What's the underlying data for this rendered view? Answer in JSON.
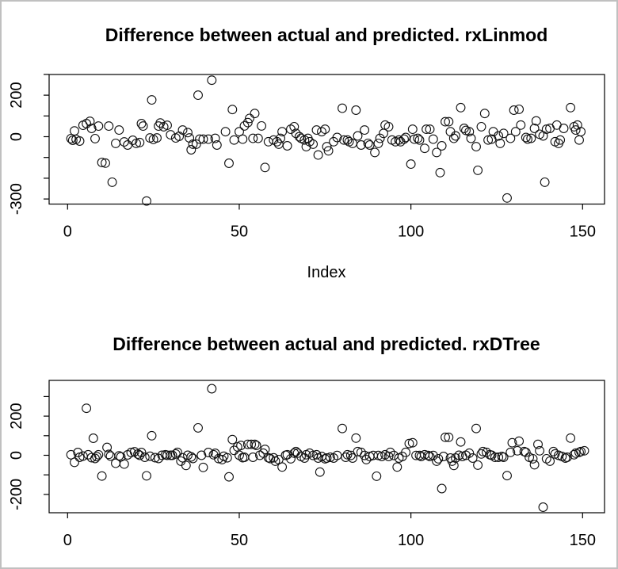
{
  "window": {
    "background": "#ffffff",
    "border_color": "#c0c0c0",
    "marker_color": "#000000"
  },
  "chart_data": [
    {
      "type": "scatter",
      "title": "Difference between actual and predicted. rxLinmod",
      "xlabel": "Index",
      "ylabel": "",
      "marker": "open-circle",
      "xlim": [
        -5,
        156
      ],
      "ylim": [
        -330,
        300
      ],
      "x_ticks": [
        {
          "v": 0,
          "label": "0"
        },
        {
          "v": 50,
          "label": "50"
        },
        {
          "v": 100,
          "label": "100"
        },
        {
          "v": 150,
          "label": "150"
        }
      ],
      "y_ticks": [
        {
          "v": 300,
          "label": ""
        },
        {
          "v": 200,
          "label": "200"
        },
        {
          "v": 100,
          "label": ""
        },
        {
          "v": 0,
          "label": "0"
        },
        {
          "v": -100,
          "label": ""
        },
        {
          "v": -200,
          "label": ""
        },
        {
          "v": -300,
          "label": "-300"
        }
      ],
      "points": [
        [
          1,
          -9
        ],
        [
          1.5,
          -17
        ],
        [
          2,
          28
        ],
        [
          2.5,
          -13
        ],
        [
          3.5,
          -21
        ],
        [
          4.5,
          55
        ],
        [
          5.5,
          63
        ],
        [
          6.5,
          74
        ],
        [
          7,
          40
        ],
        [
          8,
          -9
        ],
        [
          9,
          51
        ],
        [
          10,
          -124
        ],
        [
          11,
          -127
        ],
        [
          12,
          51
        ],
        [
          13,
          -219
        ],
        [
          14,
          -32
        ],
        [
          15,
          32
        ],
        [
          16.5,
          -25
        ],
        [
          17.5,
          -40
        ],
        [
          19,
          -17
        ],
        [
          20,
          -32
        ],
        [
          21,
          -28
        ],
        [
          21.5,
          63
        ],
        [
          22,
          51
        ],
        [
          23,
          -310
        ],
        [
          24,
          -6
        ],
        [
          24.5,
          177
        ],
        [
          25,
          -13
        ],
        [
          26,
          -6
        ],
        [
          26.5,
          51
        ],
        [
          27,
          66
        ],
        [
          28,
          48
        ],
        [
          29,
          55
        ],
        [
          30,
          9
        ],
        [
          31.5,
          -6
        ],
        [
          32.5,
          2
        ],
        [
          33.5,
          32
        ],
        [
          35,
          20
        ],
        [
          35.5,
          -6
        ],
        [
          36,
          -63
        ],
        [
          36.5,
          -36
        ],
        [
          37.5,
          -36
        ],
        [
          38,
          200
        ],
        [
          38.5,
          -12
        ],
        [
          39.5,
          -12
        ],
        [
          41,
          -12
        ],
        [
          42,
          272
        ],
        [
          43,
          -8
        ],
        [
          43.5,
          -40
        ],
        [
          46,
          24
        ],
        [
          47,
          -128
        ],
        [
          48,
          131
        ],
        [
          48.5,
          -16
        ],
        [
          50,
          24
        ],
        [
          51,
          -12
        ],
        [
          51.5,
          52
        ],
        [
          52.5,
          68
        ],
        [
          53,
          88
        ],
        [
          54,
          -8
        ],
        [
          54.5,
          112
        ],
        [
          55.5,
          -8
        ],
        [
          56.5,
          52
        ],
        [
          57.5,
          -148
        ],
        [
          58.5,
          -24
        ],
        [
          60,
          -16
        ],
        [
          61,
          -24
        ],
        [
          61.5,
          -36
        ],
        [
          62,
          -8
        ],
        [
          62.5,
          24
        ],
        [
          64,
          -44
        ],
        [
          65,
          36
        ],
        [
          66,
          48
        ],
        [
          66.5,
          16
        ],
        [
          67.5,
          0
        ],
        [
          68,
          -8
        ],
        [
          69,
          -16
        ],
        [
          69.5,
          -48
        ],
        [
          70,
          -8
        ],
        [
          70.5,
          -24
        ],
        [
          71.5,
          -36
        ],
        [
          72.5,
          32
        ],
        [
          73,
          -88
        ],
        [
          74,
          24
        ],
        [
          75,
          36
        ],
        [
          75.5,
          -48
        ],
        [
          76,
          -68
        ],
        [
          77.5,
          -24
        ],
        [
          78.5,
          -4
        ],
        [
          80,
          137
        ],
        [
          80.5,
          -16
        ],
        [
          81.5,
          -16
        ],
        [
          82,
          -24
        ],
        [
          83,
          -32
        ],
        [
          84,
          128
        ],
        [
          84.5,
          4
        ],
        [
          85.5,
          -40
        ],
        [
          86.5,
          32
        ],
        [
          87.5,
          -32
        ],
        [
          88,
          -40
        ],
        [
          89.5,
          -76
        ],
        [
          90.5,
          -32
        ],
        [
          91,
          -8
        ],
        [
          92,
          16
        ],
        [
          92.5,
          56
        ],
        [
          93.5,
          48
        ],
        [
          94.5,
          -16
        ],
        [
          95.5,
          -24
        ],
        [
          96.5,
          -16
        ],
        [
          97,
          -24
        ],
        [
          98,
          -12
        ],
        [
          98.5,
          -4
        ],
        [
          100,
          -132
        ],
        [
          100.5,
          36
        ],
        [
          101,
          -12
        ],
        [
          102,
          -8
        ],
        [
          102.5,
          -16
        ],
        [
          104,
          -56
        ],
        [
          104.5,
          36
        ],
        [
          105.5,
          36
        ],
        [
          106.5,
          -12
        ],
        [
          107.5,
          -76
        ],
        [
          108.5,
          -173
        ],
        [
          109,
          -44
        ],
        [
          110,
          72
        ],
        [
          111,
          72
        ],
        [
          111.5,
          24
        ],
        [
          112.5,
          -8
        ],
        [
          113,
          4
        ],
        [
          114.5,
          140
        ],
        [
          115.5,
          40
        ],
        [
          116,
          30
        ],
        [
          117,
          24
        ],
        [
          117.5,
          -8
        ],
        [
          119,
          -48
        ],
        [
          119.5,
          -162
        ],
        [
          120.5,
          48
        ],
        [
          121.5,
          112
        ],
        [
          122.5,
          -16
        ],
        [
          123.5,
          -12
        ],
        [
          124,
          24
        ],
        [
          125.5,
          4
        ],
        [
          126,
          -32
        ],
        [
          127,
          16
        ],
        [
          128,
          -295
        ],
        [
          129,
          -8
        ],
        [
          130,
          128
        ],
        [
          130.5,
          24
        ],
        [
          131.5,
          132
        ],
        [
          132,
          56
        ],
        [
          133.5,
          -4
        ],
        [
          134,
          -12
        ],
        [
          135,
          -8
        ],
        [
          136,
          40
        ],
        [
          136.5,
          76
        ],
        [
          137.5,
          12
        ],
        [
          138.5,
          4
        ],
        [
          139,
          -219
        ],
        [
          139.5,
          36
        ],
        [
          140.5,
          40
        ],
        [
          142,
          -24
        ],
        [
          142.5,
          56
        ],
        [
          143,
          -32
        ],
        [
          143.5,
          -16
        ],
        [
          144.5,
          40
        ],
        [
          146.5,
          140
        ],
        [
          147.5,
          48
        ],
        [
          148,
          32
        ],
        [
          148.5,
          56
        ],
        [
          149,
          -16
        ],
        [
          149.5,
          24
        ]
      ]
    },
    {
      "type": "scatter",
      "title": "Difference between actual and predicted. rxDTree",
      "xlabel": "",
      "ylabel": "",
      "marker": "open-circle",
      "xlim": [
        -5,
        156
      ],
      "ylim": [
        -295,
        380
      ],
      "x_ticks": [
        {
          "v": 0,
          "label": "0"
        },
        {
          "v": 50,
          "label": "50"
        },
        {
          "v": 100,
          "label": "100"
        },
        {
          "v": 150,
          "label": "150"
        }
      ],
      "y_ticks": [
        {
          "v": 300,
          "label": ""
        },
        {
          "v": 200,
          "label": "200"
        },
        {
          "v": 100,
          "label": ""
        },
        {
          "v": 0,
          "label": "0"
        },
        {
          "v": -100,
          "label": ""
        },
        {
          "v": -200,
          "label": "-200"
        }
      ],
      "points": [
        [
          1,
          3
        ],
        [
          2,
          -36
        ],
        [
          3,
          14
        ],
        [
          3.5,
          -10
        ],
        [
          4.5,
          -4
        ],
        [
          5.5,
          240
        ],
        [
          6,
          3
        ],
        [
          7,
          -12
        ],
        [
          7.5,
          87
        ],
        [
          8,
          -16
        ],
        [
          8.5,
          -7
        ],
        [
          9,
          3
        ],
        [
          10,
          -106
        ],
        [
          11.5,
          40
        ],
        [
          12,
          5
        ],
        [
          12.5,
          -4
        ],
        [
          14,
          -41
        ],
        [
          15,
          -3
        ],
        [
          15.5,
          -8
        ],
        [
          16.5,
          -45
        ],
        [
          17.5,
          2
        ],
        [
          18.5,
          14
        ],
        [
          19.5,
          18
        ],
        [
          20.5,
          6
        ],
        [
          21,
          0
        ],
        [
          21.5,
          14
        ],
        [
          22.5,
          -10
        ],
        [
          23,
          -105
        ],
        [
          24,
          -5
        ],
        [
          24.5,
          100
        ],
        [
          25.5,
          -12
        ],
        [
          26.5,
          -16
        ],
        [
          27.5,
          0
        ],
        [
          28.5,
          3
        ],
        [
          29,
          0
        ],
        [
          30,
          0
        ],
        [
          30.5,
          0
        ],
        [
          31.5,
          7
        ],
        [
          32,
          15
        ],
        [
          33,
          -30
        ],
        [
          33.5,
          -13
        ],
        [
          34.5,
          -52
        ],
        [
          35,
          0
        ],
        [
          36,
          -8
        ],
        [
          36.5,
          -16
        ],
        [
          38,
          140
        ],
        [
          39,
          0
        ],
        [
          39.5,
          -62
        ],
        [
          41,
          14
        ],
        [
          42,
          340
        ],
        [
          42.5,
          3
        ],
        [
          43,
          10
        ],
        [
          44,
          -17
        ],
        [
          45,
          -22
        ],
        [
          45.5,
          -5
        ],
        [
          46.5,
          -13
        ],
        [
          47,
          -110
        ],
        [
          48,
          80
        ],
        [
          48.5,
          25
        ],
        [
          49.5,
          43
        ],
        [
          50,
          0
        ],
        [
          50.5,
          50
        ],
        [
          51,
          -12
        ],
        [
          51.5,
          -10
        ],
        [
          52.5,
          56
        ],
        [
          53.5,
          56
        ],
        [
          54,
          -10
        ],
        [
          54.5,
          56
        ],
        [
          55,
          50
        ],
        [
          56,
          0
        ],
        [
          57,
          11
        ],
        [
          57.5,
          30
        ],
        [
          58.5,
          -13
        ],
        [
          59,
          -17
        ],
        [
          60,
          -13
        ],
        [
          60.5,
          -30
        ],
        [
          61.5,
          -22
        ],
        [
          62.5,
          -60
        ],
        [
          63.5,
          0
        ],
        [
          64,
          3
        ],
        [
          65,
          -18
        ],
        [
          66,
          11
        ],
        [
          66.5,
          19
        ],
        [
          67,
          11
        ],
        [
          68,
          -6
        ],
        [
          69,
          -14
        ],
        [
          69.5,
          3
        ],
        [
          70.5,
          11
        ],
        [
          71.5,
          -1
        ],
        [
          72.5,
          3
        ],
        [
          73,
          -14
        ],
        [
          73.5,
          -86
        ],
        [
          74,
          -6
        ],
        [
          75,
          -18
        ],
        [
          75.5,
          -14
        ],
        [
          76.5,
          -10
        ],
        [
          77.5,
          -14
        ],
        [
          78.5,
          -1
        ],
        [
          80,
          137
        ],
        [
          81,
          -10
        ],
        [
          81.5,
          3
        ],
        [
          82.5,
          -1
        ],
        [
          83,
          -14
        ],
        [
          84,
          88
        ],
        [
          84.5,
          19
        ],
        [
          85.5,
          15
        ],
        [
          86.5,
          -1
        ],
        [
          87,
          -22
        ],
        [
          88,
          -6
        ],
        [
          89,
          -1
        ],
        [
          90,
          -107
        ],
        [
          90.5,
          -1
        ],
        [
          91.5,
          -6
        ],
        [
          92.5,
          3
        ],
        [
          93.5,
          -6
        ],
        [
          94,
          15
        ],
        [
          95,
          -1
        ],
        [
          96,
          -60
        ],
        [
          96.5,
          -14
        ],
        [
          97.5,
          -6
        ],
        [
          98.5,
          15
        ],
        [
          99.5,
          60
        ],
        [
          100.5,
          64
        ],
        [
          101.5,
          -1
        ],
        [
          102.5,
          -1
        ],
        [
          103,
          -6
        ],
        [
          104,
          3
        ],
        [
          105,
          -1
        ],
        [
          105.5,
          -6
        ],
        [
          106.5,
          -1
        ],
        [
          107.5,
          -30
        ],
        [
          108,
          -18
        ],
        [
          109,
          -170
        ],
        [
          109.5,
          -6
        ],
        [
          110,
          92
        ],
        [
          111,
          92
        ],
        [
          111.5,
          -14
        ],
        [
          112,
          -30
        ],
        [
          112.5,
          -52
        ],
        [
          113,
          -14
        ],
        [
          114,
          0
        ],
        [
          114.5,
          68
        ],
        [
          115,
          -6
        ],
        [
          116,
          0
        ],
        [
          117,
          11
        ],
        [
          118,
          -14
        ],
        [
          119,
          137
        ],
        [
          119.5,
          -50
        ],
        [
          120.5,
          7
        ],
        [
          121,
          19
        ],
        [
          122,
          15
        ],
        [
          123,
          3
        ],
        [
          123.5,
          0
        ],
        [
          124.5,
          -10
        ],
        [
          125.5,
          -10
        ],
        [
          126.5,
          -6
        ],
        [
          127,
          -10
        ],
        [
          128,
          -104
        ],
        [
          129,
          15
        ],
        [
          129.5,
          64
        ],
        [
          131,
          23
        ],
        [
          131.5,
          72
        ],
        [
          133,
          19
        ],
        [
          133.5,
          15
        ],
        [
          134.5,
          -10
        ],
        [
          135.5,
          -18
        ],
        [
          136,
          -48
        ],
        [
          137,
          56
        ],
        [
          137.5,
          23
        ],
        [
          138.5,
          -265
        ],
        [
          139.5,
          -18
        ],
        [
          140.5,
          -30
        ],
        [
          141.5,
          19
        ],
        [
          142,
          7
        ],
        [
          143,
          0
        ],
        [
          144,
          -6
        ],
        [
          145,
          -14
        ],
        [
          145.5,
          -10
        ],
        [
          146.5,
          88
        ],
        [
          147.5,
          3
        ],
        [
          148,
          11
        ],
        [
          149,
          15
        ],
        [
          149.5,
          19
        ],
        [
          150.5,
          23
        ]
      ]
    }
  ]
}
